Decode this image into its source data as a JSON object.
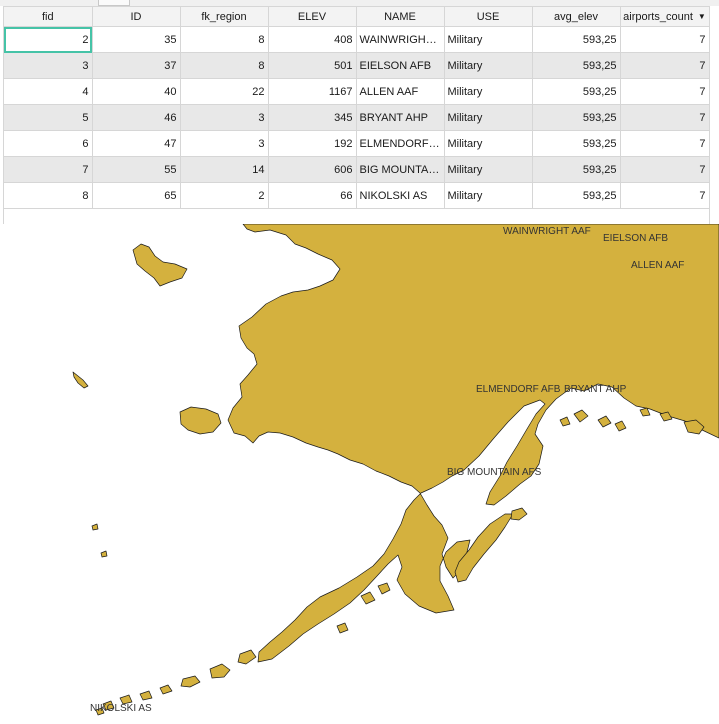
{
  "table": {
    "columns": [
      {
        "key": "fid",
        "label": "fid",
        "align": "num"
      },
      {
        "key": "id",
        "label": "ID",
        "align": "num"
      },
      {
        "key": "fk_region",
        "label": "fk_region",
        "align": "num"
      },
      {
        "key": "elev",
        "label": "ELEV",
        "align": "num"
      },
      {
        "key": "name",
        "label": "NAME",
        "align": "txt"
      },
      {
        "key": "use",
        "label": "USE",
        "align": "txt"
      },
      {
        "key": "avg_elev",
        "label": "avg_elev",
        "align": "num"
      },
      {
        "key": "airports_count",
        "label": "airports_count",
        "align": "num"
      }
    ],
    "sort_icon": "sort-descending-icon",
    "rows": [
      {
        "fid": "2",
        "id": "35",
        "fk_region": "8",
        "elev": "408",
        "name": "WAINWRIGHT ...",
        "use": "Military",
        "avg_elev": "593,25",
        "airports_count": "7"
      },
      {
        "fid": "3",
        "id": "37",
        "fk_region": "8",
        "elev": "501",
        "name": "EIELSON AFB",
        "use": "Military",
        "avg_elev": "593,25",
        "airports_count": "7"
      },
      {
        "fid": "4",
        "id": "40",
        "fk_region": "22",
        "elev": "1167",
        "name": "ALLEN AAF",
        "use": "Military",
        "avg_elev": "593,25",
        "airports_count": "7"
      },
      {
        "fid": "5",
        "id": "46",
        "fk_region": "3",
        "elev": "345",
        "name": "BRYANT AHP",
        "use": "Military",
        "avg_elev": "593,25",
        "airports_count": "7"
      },
      {
        "fid": "6",
        "id": "47",
        "fk_region": "3",
        "elev": "192",
        "name": "ELMENDORF AFB",
        "use": "Military",
        "avg_elev": "593,25",
        "airports_count": "7"
      },
      {
        "fid": "7",
        "id": "55",
        "fk_region": "14",
        "elev": "606",
        "name": "BIG MOUNTAIN...",
        "use": "Military",
        "avg_elev": "593,25",
        "airports_count": "7"
      },
      {
        "fid": "8",
        "id": "65",
        "fk_region": "2",
        "elev": "66",
        "name": "NIKOLSKI AS",
        "use": "Military",
        "avg_elev": "593,25",
        "airports_count": "7"
      }
    ]
  },
  "map": {
    "land_color": "#d4b13e",
    "labels": {
      "wainwright": "WAINWRIGHT AAF",
      "eielson": "EIELSON AFB",
      "allen": "ALLEN AAF",
      "elmendorf": "ELMENDORF AFB",
      "bryant": "BRYANT AHP",
      "big_mountain": "BIG MOUNTAIN AFS",
      "nikolski": "NIKOLSKI AS"
    }
  }
}
